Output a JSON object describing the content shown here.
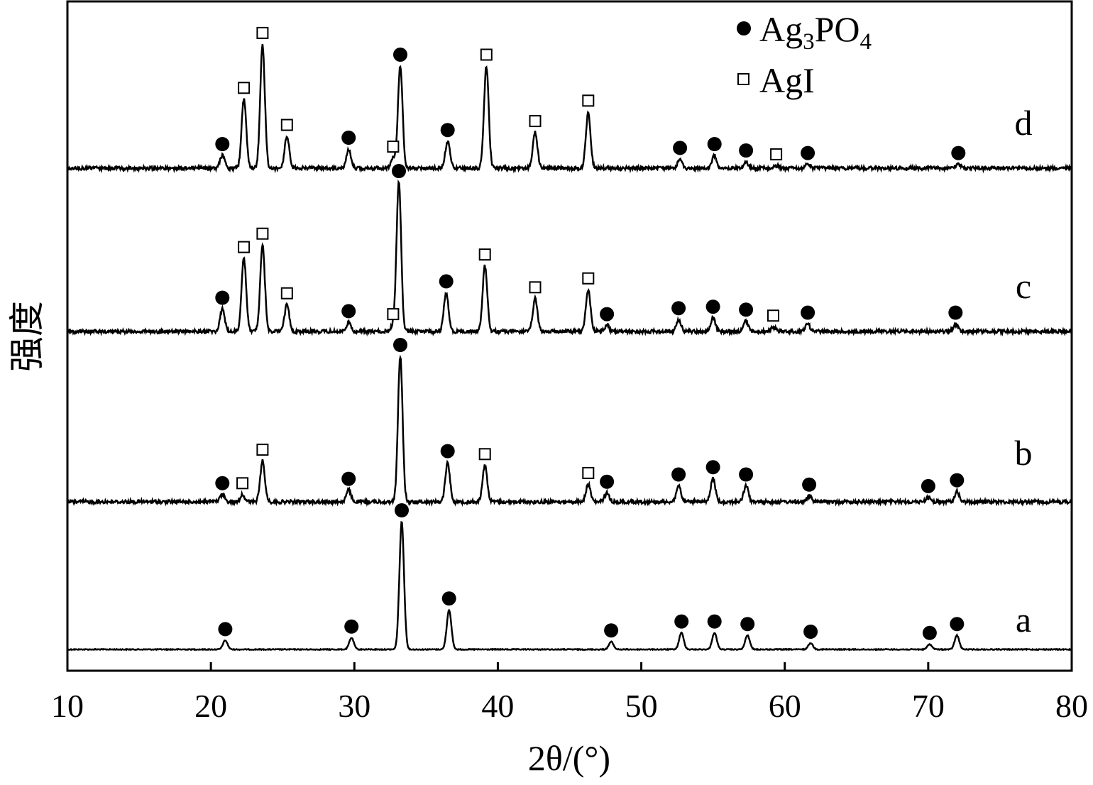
{
  "chart_data": {
    "type": "line",
    "xlabel": "2θ/(°)",
    "ylabel": "强度",
    "xlim": [
      10,
      80
    ],
    "x_ticks": [
      10,
      20,
      30,
      40,
      50,
      60,
      70,
      80
    ],
    "grid": false,
    "legend_position": "top-right",
    "legend": [
      {
        "marker": "filled-circle",
        "base": "Ag",
        "sub1": "3",
        "mid": "PO",
        "sub2": "4"
      },
      {
        "marker": "open-square",
        "base": "AgI",
        "sub1": "",
        "mid": "",
        "sub2": ""
      }
    ],
    "series": [
      {
        "name": "a",
        "circle_peaks": [
          [
            21.0,
            0.07
          ],
          [
            29.8,
            0.09
          ],
          [
            33.3,
            1.0
          ],
          [
            36.6,
            0.31
          ],
          [
            47.9,
            0.06
          ],
          [
            52.8,
            0.13
          ],
          [
            55.1,
            0.13
          ],
          [
            57.4,
            0.11
          ],
          [
            61.8,
            0.05
          ],
          [
            70.1,
            0.04
          ],
          [
            72.0,
            0.11
          ]
        ],
        "square_peaks": []
      },
      {
        "name": "b",
        "circle_peaks": [
          [
            20.8,
            0.05
          ],
          [
            29.6,
            0.08
          ],
          [
            33.2,
            1.0
          ],
          [
            36.5,
            0.27
          ],
          [
            47.6,
            0.06
          ],
          [
            52.6,
            0.11
          ],
          [
            55.0,
            0.16
          ],
          [
            57.3,
            0.11
          ],
          [
            61.7,
            0.04
          ],
          [
            70.0,
            0.03
          ],
          [
            72.0,
            0.07
          ]
        ],
        "square_peaks": [
          [
            22.2,
            0.05
          ],
          [
            23.6,
            0.28
          ],
          [
            39.1,
            0.25
          ],
          [
            46.3,
            0.12
          ]
        ]
      },
      {
        "name": "c",
        "circle_peaks": [
          [
            20.8,
            0.15
          ],
          [
            29.6,
            0.06
          ],
          [
            33.1,
            1.0
          ],
          [
            36.4,
            0.26
          ],
          [
            47.6,
            0.04
          ],
          [
            52.6,
            0.08
          ],
          [
            55.0,
            0.09
          ],
          [
            57.3,
            0.07
          ],
          [
            61.6,
            0.05
          ],
          [
            71.9,
            0.05
          ]
        ],
        "square_peaks": [
          [
            22.3,
            0.49
          ],
          [
            23.6,
            0.58
          ],
          [
            25.3,
            0.18
          ],
          [
            32.7,
            0.04
          ],
          [
            39.1,
            0.44
          ],
          [
            42.6,
            0.22
          ],
          [
            46.3,
            0.28
          ],
          [
            59.2,
            0.03
          ]
        ]
      },
      {
        "name": "d",
        "circle_peaks": [
          [
            20.8,
            0.1
          ],
          [
            29.6,
            0.15
          ],
          [
            33.2,
            0.8
          ],
          [
            36.5,
            0.21
          ],
          [
            52.7,
            0.07
          ],
          [
            55.1,
            0.1
          ],
          [
            57.3,
            0.05
          ],
          [
            61.6,
            0.03
          ],
          [
            72.1,
            0.03
          ]
        ],
        "square_peaks": [
          [
            22.3,
            0.54
          ],
          [
            23.6,
            0.97
          ],
          [
            25.3,
            0.25
          ],
          [
            32.7,
            0.08
          ],
          [
            39.2,
            0.8
          ],
          [
            42.6,
            0.28
          ],
          [
            46.3,
            0.44
          ],
          [
            59.4,
            0.02
          ]
        ]
      }
    ]
  }
}
